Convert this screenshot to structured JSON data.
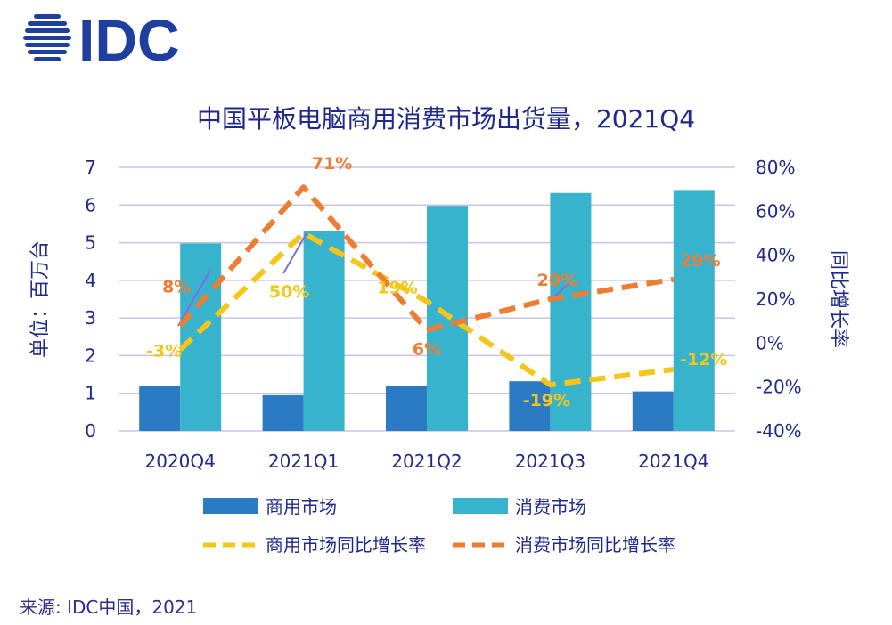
{
  "brand": {
    "name": "IDC",
    "color": "#1f3f9e"
  },
  "source": "来源: IDC中国，2021",
  "colors": {
    "commercial": "#2a7bc4",
    "consumer": "#37b3cd",
    "commercial_growth": "#f5c518",
    "consumer_growth": "#ee7d31",
    "axis_text": "#1f2a8c",
    "grid": "#c9c3ea"
  },
  "chart_data": {
    "type": "bar",
    "title": "中国平板电脑商用消费市场出货量，2021Q4",
    "categories": [
      "2020Q4",
      "2021Q1",
      "2021Q2",
      "2021Q3",
      "2021Q4"
    ],
    "series": [
      {
        "name": "商用市场",
        "kind": "bar",
        "axis": "left",
        "values": [
          1.2,
          0.95,
          1.2,
          1.32,
          1.05
        ]
      },
      {
        "name": "消费市场",
        "kind": "bar",
        "axis": "left",
        "values": [
          4.98,
          5.3,
          5.98,
          6.32,
          6.4
        ]
      },
      {
        "name": "商用市场同比增长率",
        "kind": "line-dashed",
        "axis": "right",
        "values": [
          -3,
          50,
          19,
          -19,
          -12
        ],
        "labels": [
          "-3%",
          "50%",
          "19%",
          "-19%",
          "-12%"
        ]
      },
      {
        "name": "消费市场同比增长率",
        "kind": "line-dashed",
        "axis": "right",
        "values": [
          8,
          71,
          6,
          20,
          29
        ],
        "labels": [
          "8%",
          "71%",
          "6%",
          "20%",
          "29%"
        ]
      }
    ],
    "ylabel": "单位：百万台",
    "y2label": "同比增长率",
    "ylim": [
      0,
      7
    ],
    "yticks": [
      "0",
      "1",
      "2",
      "3",
      "4",
      "5",
      "6",
      "7"
    ],
    "y2lim": [
      -40,
      80
    ],
    "y2ticks": [
      "-40%",
      "-20%",
      "0%",
      "20%",
      "40%",
      "60%",
      "80%"
    ],
    "grid": true,
    "legend_position": "bottom"
  }
}
